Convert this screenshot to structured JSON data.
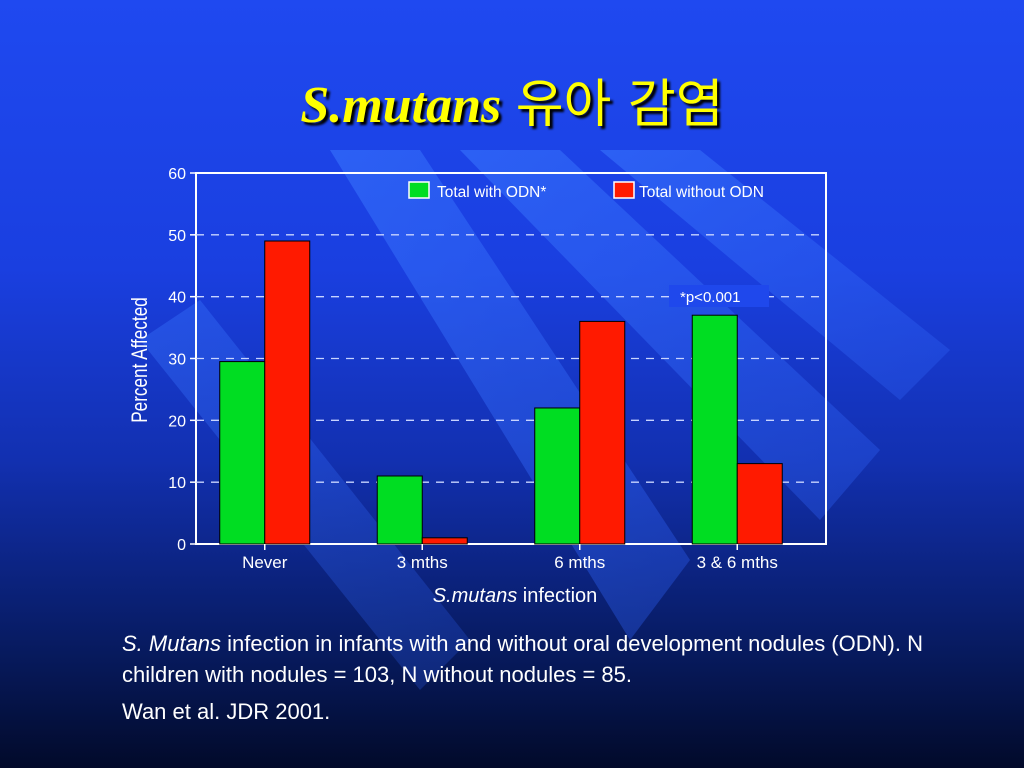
{
  "slide": {
    "title_italic": "S.mutans",
    "title_korean": "유아 감염"
  },
  "caption": {
    "italic_part": "S. Mutans",
    "text_part": " infection in infants with and without oral development nodules (ODN). N children with nodules = 103, N without nodules = 85.",
    "reference": "Wan et al. JDR 2001."
  },
  "colors": {
    "series_with_odn": "#00dd22",
    "series_without_odn": "#ff1a00"
  },
  "chart_data": {
    "type": "bar",
    "categories": [
      "Never",
      "3 mths",
      "6 mths",
      "3 & 6 mths"
    ],
    "series": [
      {
        "name": "Total with ODN*",
        "values": [
          29.5,
          11,
          22,
          37
        ]
      },
      {
        "name": "Total without ODN",
        "values": [
          49,
          1,
          36,
          13
        ]
      }
    ],
    "ylim": [
      0,
      60
    ],
    "yticks": [
      "0",
      "10",
      "20",
      "30",
      "40",
      "50",
      "60"
    ],
    "ylabel": "Percent Affected",
    "xlabel_italic": "S.mutans",
    "xlabel_rest": " infection",
    "annotation": "*p<0.001",
    "grid": true,
    "legend": "top-right"
  }
}
